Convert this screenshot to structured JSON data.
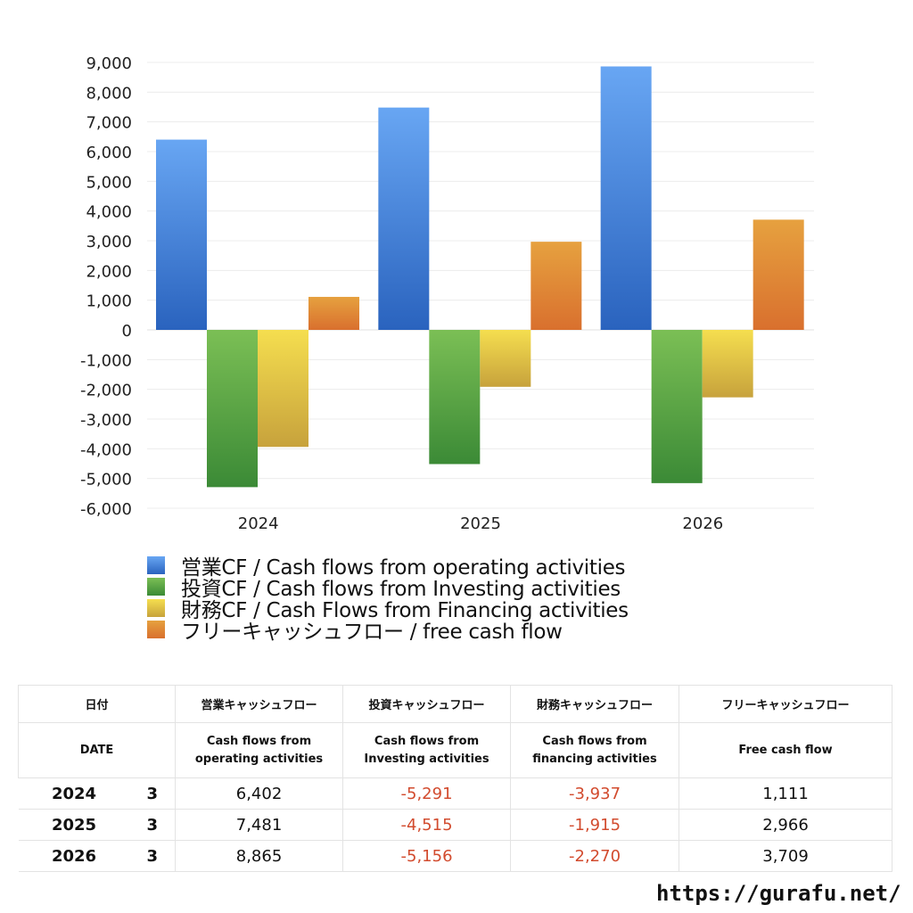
{
  "chart_data": {
    "type": "bar",
    "categories": [
      "2024",
      "2025",
      "2026"
    ],
    "series": [
      {
        "name": "営業CF / Cash flows from operating activities",
        "values": [
          6402,
          7481,
          8865
        ],
        "color_top": "#68a6f3",
        "color_bottom": "#2a63be"
      },
      {
        "name": "投資CF / Cash flows from Investing activities",
        "values": [
          -5291,
          -4515,
          -5156
        ],
        "color_top": "#7bbf55",
        "color_bottom": "#3b8a36"
      },
      {
        "name": "財務CF / Cash Flows from Financing activities",
        "values": [
          -3937,
          -1915,
          -2270
        ],
        "color_top": "#f5de4f",
        "color_bottom": "#c7a23c"
      },
      {
        "name": "フリーキャッシュフロー / free cash flow",
        "values": [
          1111,
          2966,
          3709
        ],
        "color_top": "#e6a13f",
        "color_bottom": "#d9702e"
      }
    ],
    "yticks": [
      "9,000",
      "8,000",
      "7,000",
      "6,000",
      "5,000",
      "4,000",
      "3,000",
      "2,000",
      "1,000",
      "0",
      "-1,000",
      "-2,000",
      "-3,000",
      "-4,000",
      "-5,000",
      "-6,000"
    ],
    "ylim": [
      -6000,
      9000
    ],
    "grid": true,
    "legend_position": "bottom"
  },
  "table": {
    "header1": [
      "日付",
      "営業キャッシュフロー",
      "投資キャッシュフロー",
      "財務キャッシュフロー",
      "フリーキャッシュフロー"
    ],
    "header2": [
      "DATE",
      "Cash flows from operating activities",
      "Cash flows from Investing activities",
      "Cash flows from financing activities",
      "Free cash flow"
    ],
    "header2_lines": [
      [
        "DATE"
      ],
      [
        "Cash flows from",
        "operating activities"
      ],
      [
        "Cash flows from",
        "Investing activities"
      ],
      [
        "Cash flows from",
        "financing activities"
      ],
      [
        "Free cash flow"
      ]
    ],
    "rows": [
      {
        "year": "2024",
        "month": "3",
        "op": "6,402",
        "inv": "-5,291",
        "fin": "-3,937",
        "fcf": "1,111"
      },
      {
        "year": "2025",
        "month": "3",
        "op": "7,481",
        "inv": "-4,515",
        "fin": "-1,915",
        "fcf": "2,966"
      },
      {
        "year": "2026",
        "month": "3",
        "op": "8,865",
        "inv": "-5,156",
        "fin": "-2,270",
        "fcf": "3,709"
      }
    ]
  },
  "footer": {
    "url": "https://gurafu.net/"
  }
}
